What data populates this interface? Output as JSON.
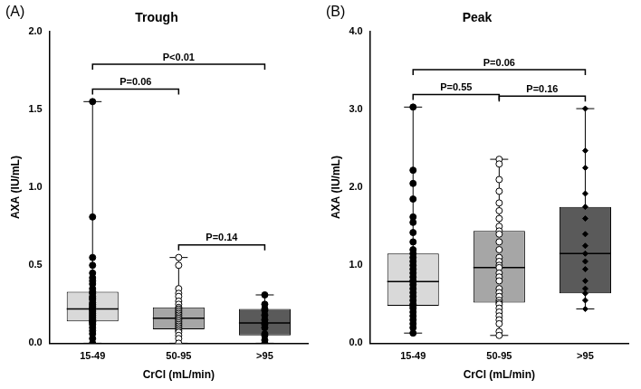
{
  "chart_data": [
    {
      "type": "boxplot",
      "panel_label": "(A)",
      "title": "Trough",
      "x_label": "CrCl (mL/min)",
      "y_label": "AXA (IU/mL)",
      "categories": [
        "15-49",
        "50-95",
        ">95"
      ],
      "colors": [
        "#d9d9d9",
        "#a6a6a6",
        "#5a5a5a"
      ],
      "markers": [
        "circle",
        "circle-open",
        "circle"
      ],
      "boxes": [
        {
          "min": 0.0,
          "q1": 0.14,
          "median": 0.22,
          "q3": 0.33,
          "max": 1.55
        },
        {
          "min": 0.0,
          "q1": 0.09,
          "median": 0.16,
          "q3": 0.23,
          "max": 0.55
        },
        {
          "min": 0.0,
          "q1": 0.05,
          "median": 0.13,
          "q3": 0.22,
          "max": 0.31
        }
      ],
      "points": [
        [
          1.55,
          0.81,
          0.55,
          0.5,
          0.45,
          0.42,
          0.4,
          0.38,
          0.35,
          0.33,
          0.32,
          0.3,
          0.29,
          0.28,
          0.26,
          0.25,
          0.24,
          0.23,
          0.22,
          0.22,
          0.21,
          0.2,
          0.19,
          0.18,
          0.17,
          0.16,
          0.15,
          0.14,
          0.14,
          0.13,
          0.12,
          0.1,
          0.08,
          0.06,
          0.03,
          0.0
        ],
        [
          0.55,
          0.5,
          0.35,
          0.32,
          0.3,
          0.27,
          0.25,
          0.23,
          0.22,
          0.21,
          0.2,
          0.19,
          0.18,
          0.17,
          0.16,
          0.16,
          0.15,
          0.14,
          0.13,
          0.12,
          0.11,
          0.1,
          0.09,
          0.08,
          0.07,
          0.05,
          0.03,
          0.0
        ],
        [
          0.31,
          0.25,
          0.22,
          0.21,
          0.18,
          0.15,
          0.13,
          0.12,
          0.1,
          0.06,
          0.05,
          0.02,
          0.0
        ]
      ],
      "annotations": [
        {
          "from": "15-49",
          "to": "50-95",
          "label": "P=0.06"
        },
        {
          "from": "50-95",
          "to": ">95",
          "label": "P=0.14"
        },
        {
          "from": "15-49",
          "to": ">95",
          "label": "P<0.01"
        }
      ],
      "ylim": [
        0,
        2
      ],
      "yticks": [
        {
          "value": 0,
          "label": "0.0"
        },
        {
          "value": 0.5,
          "label": "0.5"
        },
        {
          "value": 1,
          "label": "1.0"
        },
        {
          "value": 1.5,
          "label": "1.5"
        },
        {
          "value": 2,
          "label": "2.0"
        }
      ],
      "grid": false
    },
    {
      "type": "boxplot",
      "panel_label": "(B)",
      "title": "Peak",
      "x_label": "CrCl (mL/min)",
      "y_label": "AXA (IU/mL)",
      "categories": [
        "15-49",
        "50-95",
        ">95"
      ],
      "colors": [
        "#d9d9d9",
        "#a6a6a6",
        "#5a5a5a"
      ],
      "markers": [
        "circle",
        "circle-open",
        "diamond"
      ],
      "boxes": [
        {
          "min": 0.13,
          "q1": 0.48,
          "median": 0.79,
          "q3": 1.15,
          "max": 3.03
        },
        {
          "min": 0.1,
          "q1": 0.52,
          "median": 0.97,
          "q3": 1.44,
          "max": 2.36
        },
        {
          "min": 0.44,
          "q1": 0.64,
          "median": 1.15,
          "q3": 1.75,
          "max": 3.01
        }
      ],
      "points": [
        [
          3.03,
          2.22,
          2.05,
          1.85,
          1.62,
          1.55,
          1.42,
          1.3,
          1.2,
          1.15,
          1.1,
          1.05,
          1.0,
          0.95,
          0.9,
          0.85,
          0.8,
          0.79,
          0.75,
          0.7,
          0.65,
          0.6,
          0.55,
          0.5,
          0.48,
          0.45,
          0.4,
          0.35,
          0.3,
          0.25,
          0.2,
          0.13
        ],
        [
          2.36,
          2.3,
          2.1,
          1.95,
          1.8,
          1.7,
          1.6,
          1.5,
          1.44,
          1.4,
          1.3,
          1.2,
          1.1,
          1.05,
          1.0,
          0.97,
          0.9,
          0.85,
          0.8,
          0.7,
          0.65,
          0.6,
          0.55,
          0.52,
          0.5,
          0.45,
          0.4,
          0.35,
          0.3,
          0.25,
          0.15,
          0.1
        ],
        [
          3.01,
          2.47,
          2.25,
          1.92,
          1.75,
          1.6,
          1.4,
          1.25,
          1.15,
          1.05,
          0.95,
          0.8,
          0.7,
          0.64,
          0.55,
          0.44
        ]
      ],
      "annotations": [
        {
          "from": "15-49",
          "to": "50-95",
          "label": "P=0.55"
        },
        {
          "from": "50-95",
          "to": ">95",
          "label": "P=0.16"
        },
        {
          "from": "15-49",
          "to": ">95",
          "label": "P=0.06"
        }
      ],
      "ylim": [
        0,
        4
      ],
      "yticks": [
        {
          "value": 0,
          "label": "0.0"
        },
        {
          "value": 1,
          "label": "1.0"
        },
        {
          "value": 2,
          "label": "2.0"
        },
        {
          "value": 3,
          "label": "3.0"
        },
        {
          "value": 4,
          "label": "4.0"
        }
      ],
      "grid": false
    }
  ]
}
